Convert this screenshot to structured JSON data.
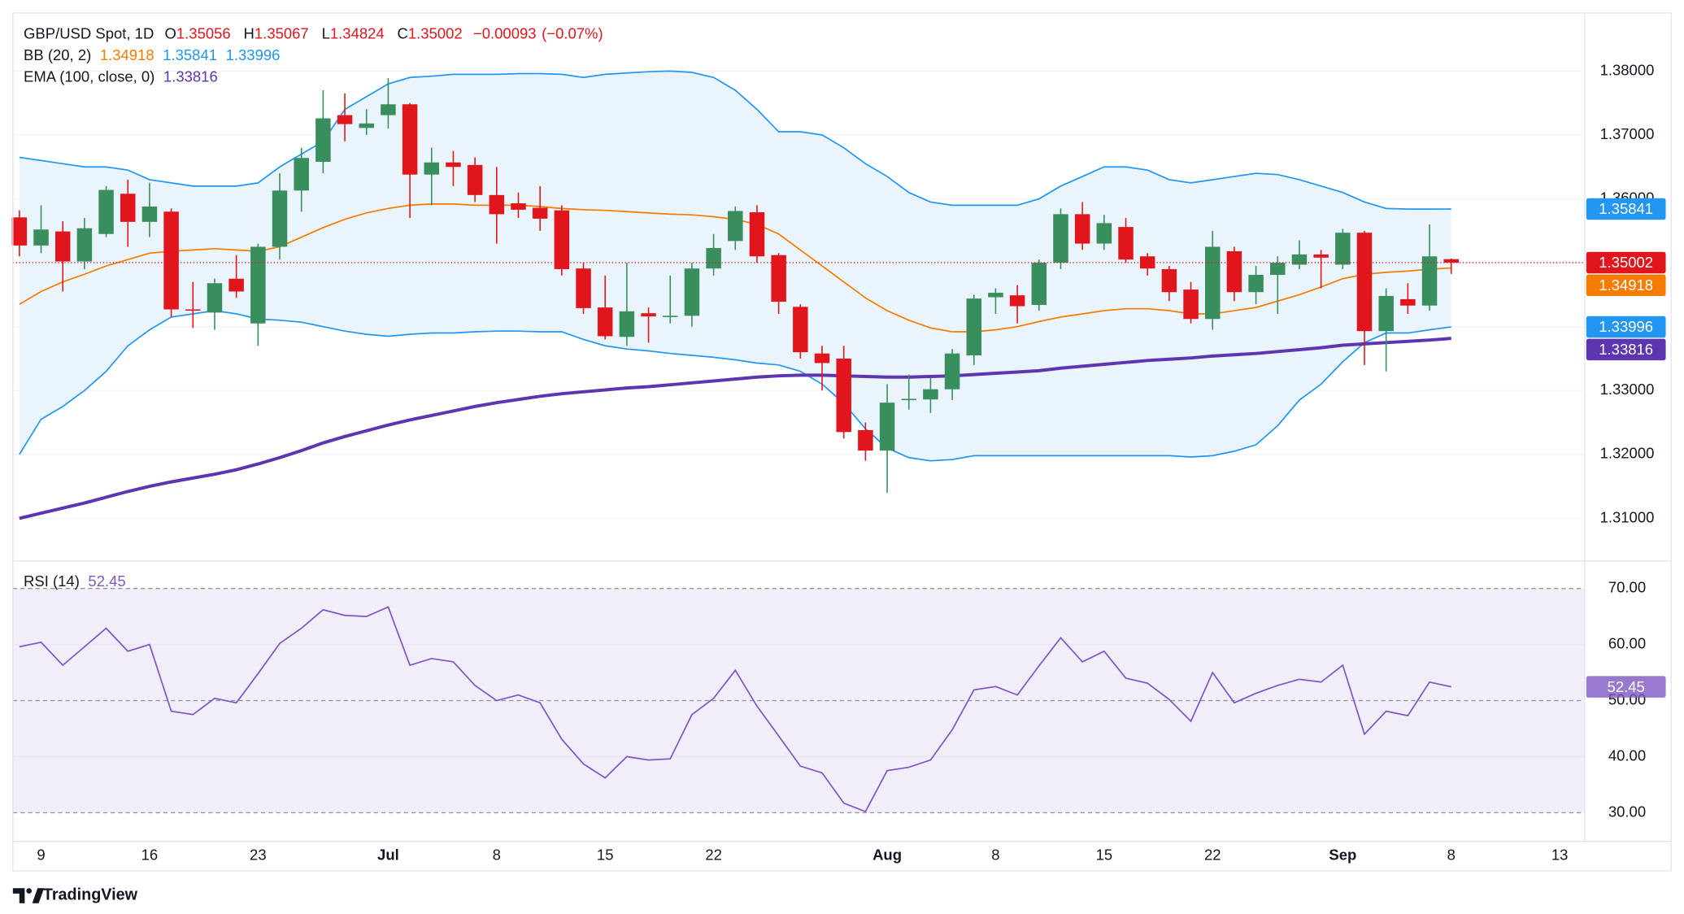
{
  "chart_data": {
    "type": "candlestick",
    "symbol": "GBP/USD Spot, 1D",
    "ohlc_labels": [
      "O",
      "H",
      "L",
      "C"
    ],
    "change": {
      "value": -0.00093,
      "label": "−0.00093"
    },
    "change_pct": {
      "value": -0.07,
      "label": "(−0.07%)"
    },
    "up_color": "#388e5c",
    "down_color": "#e1151c",
    "categories": [
      null,
      "9",
      null,
      null,
      null,
      null,
      "16",
      null,
      null,
      null,
      null,
      "23",
      null,
      null,
      null,
      null,
      null,
      "Jul",
      null,
      null,
      null,
      null,
      "8",
      null,
      null,
      null,
      null,
      "15",
      null,
      null,
      null,
      null,
      "22",
      null,
      null,
      null,
      null,
      null,
      null,
      null,
      "Aug",
      null,
      null,
      null,
      null,
      "8",
      null,
      null,
      null,
      null,
      "15",
      null,
      null,
      null,
      null,
      "22",
      null,
      null,
      null,
      null,
      null,
      "Sep",
      null,
      null,
      null,
      null,
      "8",
      null,
      null,
      null,
      null,
      "13"
    ],
    "open": [
      1.3571,
      1.3527,
      1.3549,
      1.3502,
      1.3545,
      1.3608,
      1.3564,
      1.358,
      1.3427,
      1.3422,
      1.3475,
      1.3405,
      1.3525,
      1.3613,
      1.3658,
      1.3731,
      1.3711,
      1.3731,
      1.3748,
      1.3638,
      1.3657,
      1.3653,
      1.3606,
      1.3593,
      1.3586,
      1.3582,
      1.3491,
      1.343,
      1.3384,
      1.3421,
      1.3415,
      1.3417,
      1.3491,
      1.3534,
      1.3579,
      1.3512,
      1.3431,
      1.3358,
      1.335,
      1.3238,
      1.3206,
      1.3285,
      1.3286,
      1.3302,
      1.3355,
      1.3446,
      1.3449,
      1.3434,
      1.35,
      1.3576,
      1.353,
      1.3556,
      1.351,
      1.349,
      1.3458,
      1.3412,
      1.3518,
      1.3454,
      1.3481,
      1.3497,
      1.3513,
      1.3497,
      1.3547,
      1.3393,
      1.3443,
      1.3433,
      1.35056,
      null,
      null,
      null,
      null,
      null
    ],
    "high": [
      1.3582,
      1.359,
      1.3565,
      1.357,
      1.362,
      1.363,
      1.3625,
      1.3585,
      1.347,
      1.3475,
      1.3512,
      1.353,
      1.364,
      1.368,
      1.377,
      1.3765,
      1.374,
      1.3789,
      1.375,
      1.368,
      1.3675,
      1.3665,
      1.365,
      1.361,
      1.362,
      1.359,
      1.35,
      1.348,
      1.35,
      1.343,
      1.348,
      1.35,
      1.3545,
      1.3588,
      1.359,
      1.3515,
      1.3435,
      1.337,
      1.337,
      1.325,
      1.331,
      1.3325,
      1.332,
      1.3365,
      1.345,
      1.346,
      1.3465,
      1.3505,
      1.3585,
      1.3595,
      1.3575,
      1.357,
      1.3515,
      1.3495,
      1.347,
      1.355,
      1.3525,
      1.3495,
      1.351,
      1.3535,
      1.352,
      1.3553,
      1.355,
      1.346,
      1.3468,
      1.356,
      1.35067,
      null,
      null,
      null,
      null,
      null
    ],
    "low": [
      1.351,
      1.3515,
      1.3455,
      1.349,
      1.354,
      1.3525,
      1.354,
      1.3415,
      1.3398,
      1.3395,
      1.3445,
      1.337,
      1.3505,
      1.358,
      1.364,
      1.369,
      1.37,
      1.371,
      1.357,
      1.359,
      1.362,
      1.3595,
      1.353,
      1.357,
      1.355,
      1.348,
      1.342,
      1.338,
      1.337,
      1.3375,
      1.3405,
      1.34,
      1.348,
      1.352,
      1.35,
      1.342,
      1.335,
      1.33,
      1.3225,
      1.319,
      1.314,
      1.327,
      1.3265,
      1.3285,
      1.334,
      1.342,
      1.3405,
      1.3425,
      1.349,
      1.352,
      1.352,
      1.35,
      1.348,
      1.344,
      1.3405,
      1.3395,
      1.344,
      1.3435,
      1.342,
      1.349,
      1.346,
      1.349,
      1.334,
      1.333,
      1.342,
      1.3425,
      1.34824,
      null,
      null,
      null,
      null,
      null
    ],
    "close": [
      1.3527,
      1.3552,
      1.3502,
      1.3554,
      1.3614,
      1.3564,
      1.3588,
      1.3427,
      1.3425,
      1.3468,
      1.3455,
      1.3525,
      1.3613,
      1.3664,
      1.3726,
      1.3717,
      1.3718,
      1.3748,
      1.3638,
      1.3657,
      1.365,
      1.3606,
      1.3576,
      1.3583,
      1.3569,
      1.349,
      1.3429,
      1.3385,
      1.3424,
      1.3416,
      1.3417,
      1.3491,
      1.3523,
      1.3581,
      1.351,
      1.3439,
      1.336,
      1.3343,
      1.3235,
      1.3206,
      1.3281,
      1.3287,
      1.3302,
      1.3358,
      1.3444,
      1.3453,
      1.3432,
      1.35,
      1.3576,
      1.353,
      1.3562,
      1.3505,
      1.3491,
      1.3454,
      1.3412,
      1.3525,
      1.3454,
      1.3481,
      1.35,
      1.3513,
      1.3508,
      1.3547,
      1.3393,
      1.3448,
      1.3433,
      1.351,
      1.35002,
      null,
      null,
      null,
      null,
      null
    ],
    "bollinger": {
      "name": "BB (20, 2)",
      "fill": "#eaf4fd",
      "middle": {
        "color": "#f57c00",
        "values": [
          1.3435,
          1.3455,
          1.347,
          1.3482,
          1.3495,
          1.3505,
          1.3515,
          1.3518,
          1.352,
          1.3522,
          1.352,
          1.3518,
          1.3525,
          1.354,
          1.3555,
          1.3568,
          1.3578,
          1.3585,
          1.359,
          1.3592,
          1.3592,
          1.359,
          1.359,
          1.359,
          1.3588,
          1.3585,
          1.3583,
          1.3582,
          1.358,
          1.3578,
          1.3576,
          1.3575,
          1.3572,
          1.3568,
          1.356,
          1.3545,
          1.352,
          1.3495,
          1.347,
          1.3445,
          1.3425,
          1.341,
          1.3398,
          1.3392,
          1.3392,
          1.3395,
          1.34,
          1.3408,
          1.3415,
          1.342,
          1.3425,
          1.3428,
          1.3428,
          1.3425,
          1.342,
          1.342,
          1.3425,
          1.343,
          1.344,
          1.345,
          1.3462,
          1.3475,
          1.3482,
          1.3485,
          1.3487,
          1.349,
          1.34918,
          null,
          null,
          null,
          null,
          null
        ]
      },
      "upper": {
        "color": "#2196f3",
        "values": [
          1.3665,
          1.366,
          1.3655,
          1.365,
          1.365,
          1.3645,
          1.363,
          1.3625,
          1.362,
          1.362,
          1.362,
          1.3625,
          1.365,
          1.367,
          1.369,
          1.374,
          1.376,
          1.378,
          1.379,
          1.3792,
          1.3795,
          1.3795,
          1.3795,
          1.3796,
          1.3796,
          1.3795,
          1.379,
          1.3795,
          1.3797,
          1.3799,
          1.38,
          1.3798,
          1.379,
          1.377,
          1.374,
          1.3705,
          1.3705,
          1.37,
          1.368,
          1.3655,
          1.3635,
          1.361,
          1.3595,
          1.359,
          1.359,
          1.359,
          1.359,
          1.36,
          1.362,
          1.3635,
          1.365,
          1.365,
          1.3645,
          1.363,
          1.3625,
          1.363,
          1.3635,
          1.364,
          1.3638,
          1.363,
          1.362,
          1.361,
          1.3595,
          1.3585,
          1.3584,
          1.3584,
          1.35841,
          null,
          null,
          null,
          null,
          null
        ]
      },
      "lower": {
        "color": "#2196f3",
        "values": [
          1.32,
          1.3255,
          1.3275,
          1.33,
          1.333,
          1.337,
          1.3395,
          1.3415,
          1.342,
          1.3425,
          1.342,
          1.3412,
          1.341,
          1.3407,
          1.34,
          1.3393,
          1.3388,
          1.3385,
          1.3388,
          1.339,
          1.339,
          1.3392,
          1.3393,
          1.3393,
          1.3392,
          1.3392,
          1.338,
          1.337,
          1.3365,
          1.3362,
          1.3358,
          1.3355,
          1.3352,
          1.3348,
          1.3343,
          1.334,
          1.333,
          1.331,
          1.328,
          1.324,
          1.321,
          1.3195,
          1.319,
          1.3192,
          1.3198,
          1.3198,
          1.3198,
          1.3198,
          1.3198,
          1.3198,
          1.3198,
          1.3198,
          1.3198,
          1.3198,
          1.3196,
          1.3198,
          1.3205,
          1.3215,
          1.3245,
          1.3285,
          1.331,
          1.3345,
          1.3375,
          1.339,
          1.339,
          1.3395,
          1.33996,
          null,
          null,
          null,
          null,
          null
        ]
      }
    },
    "ema": {
      "name": "EMA (100, close, 0)",
      "color": "#5e35b1",
      "values": [
        1.31,
        1.3108,
        1.3116,
        1.3124,
        1.3133,
        1.3142,
        1.315,
        1.3157,
        1.3163,
        1.3169,
        1.3176,
        1.3185,
        1.3195,
        1.3206,
        1.3218,
        1.3228,
        1.3237,
        1.3246,
        1.3254,
        1.3261,
        1.3268,
        1.3275,
        1.3281,
        1.3286,
        1.3291,
        1.3295,
        1.3298,
        1.3301,
        1.3304,
        1.3306,
        1.3309,
        1.3312,
        1.3315,
        1.3318,
        1.3321,
        1.3323,
        1.3324,
        1.3324,
        1.3323,
        1.3322,
        1.3321,
        1.3321,
        1.3322,
        1.3323,
        1.3325,
        1.3327,
        1.3329,
        1.3331,
        1.3335,
        1.3338,
        1.3341,
        1.3344,
        1.3347,
        1.3349,
        1.3351,
        1.3354,
        1.3356,
        1.3358,
        1.3361,
        1.3364,
        1.3367,
        1.3371,
        1.3373,
        1.3375,
        1.3377,
        1.3379,
        1.33816,
        null,
        null,
        null,
        null,
        null
      ]
    },
    "ylim": [
      1.3034,
      1.3891
    ],
    "yticks": [
      {
        "value": 1.31,
        "label": "1.31000"
      },
      {
        "value": 1.32,
        "label": "1.32000"
      },
      {
        "value": 1.33,
        "label": "1.33000"
      },
      {
        "value": 1.34,
        "label": "1.34000"
      },
      {
        "value": 1.35,
        "label": "1.35000"
      },
      {
        "value": 1.36,
        "label": "1.36000"
      },
      {
        "value": 1.37,
        "label": "1.37000"
      },
      {
        "value": 1.38,
        "label": "1.38000"
      }
    ],
    "grid": true,
    "rsi": {
      "name": "RSI (14)",
      "color": "#7e57c2",
      "fill": "#f1edf9",
      "values": [
        59.6,
        60.4,
        56.3,
        59.6,
        62.9,
        58.8,
        60,
        48.1,
        47.5,
        50.4,
        49.6,
        54.8,
        60.2,
        62.9,
        66.2,
        65.2,
        65,
        66.7,
        56.3,
        57.5,
        56.9,
        52.7,
        50,
        51,
        49.6,
        43.1,
        38.7,
        36.2,
        40,
        39.4,
        39.6,
        47.5,
        50.4,
        55.4,
        49,
        43.7,
        38.3,
        37.1,
        31.7,
        30.2,
        37.5,
        38.1,
        39.4,
        44.8,
        51.9,
        52.5,
        51,
        56.2,
        61.2,
        56.9,
        58.8,
        54,
        53.1,
        50.2,
        46.3,
        55,
        49.6,
        51.3,
        52.7,
        53.8,
        53.3,
        56.3,
        44,
        48.1,
        47.3,
        53.3,
        52.45,
        null,
        null,
        null,
        null,
        null
      ],
      "ylim": [
        25,
        74.8
      ],
      "yticks": [
        {
          "value": 30,
          "label": "30.00"
        },
        {
          "value": 40,
          "label": "40.00"
        },
        {
          "value": 50,
          "label": "50.00"
        },
        {
          "value": 60,
          "label": "60.00"
        },
        {
          "value": 70,
          "label": "70.00"
        }
      ]
    },
    "watermark": "TradingView"
  }
}
